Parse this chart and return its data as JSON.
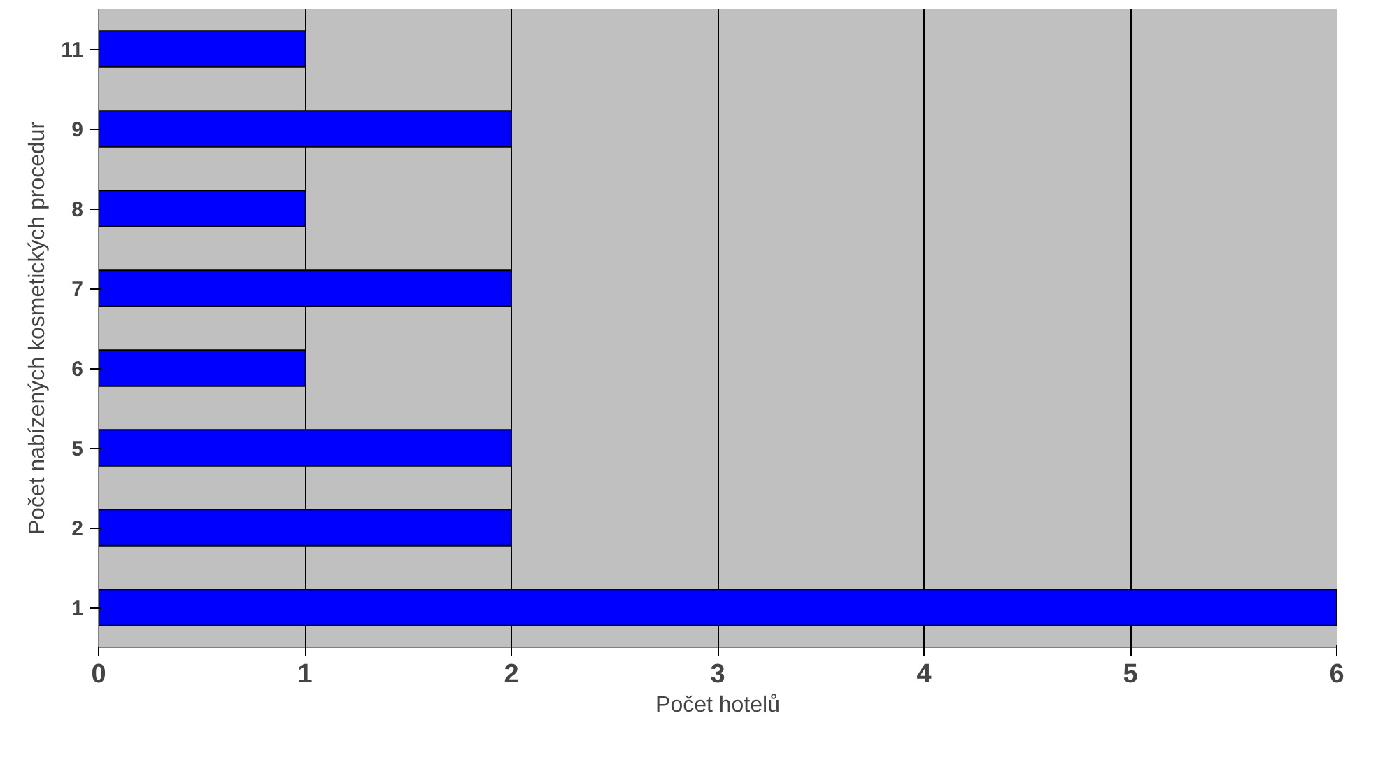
{
  "chart_data": {
    "type": "bar",
    "orientation": "horizontal",
    "xlabel": "Počet hotelů",
    "ylabel": "Počet nabízených kosmetických procedur",
    "categories": [
      "11",
      "9",
      "8",
      "7",
      "6",
      "5",
      "2",
      "1"
    ],
    "series": [
      {
        "color": "#0000ff",
        "values": [
          1,
          2,
          1,
          2,
          1,
          2,
          2,
          6
        ]
      }
    ],
    "xlim": [
      0,
      6
    ],
    "xticks": [
      0,
      1,
      2,
      3,
      4,
      5,
      6
    ],
    "grid": "x"
  }
}
